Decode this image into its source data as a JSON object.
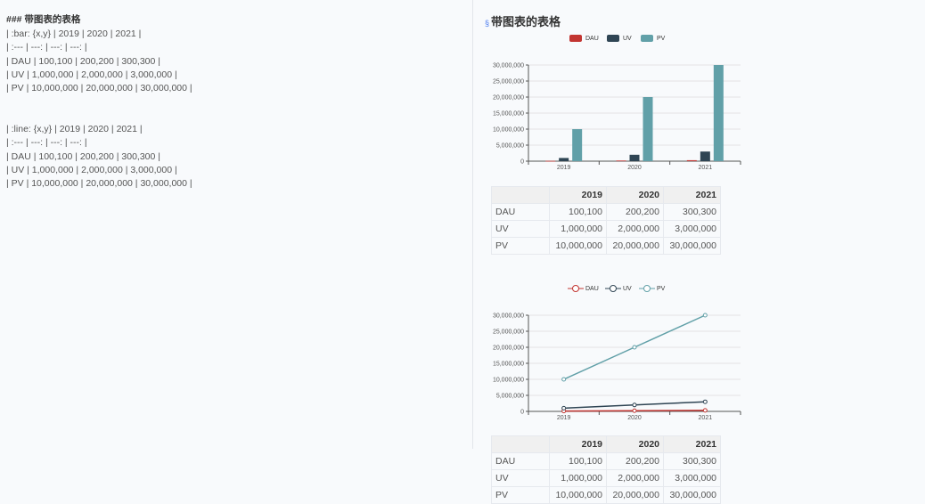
{
  "editor": {
    "heading_line": "### 带图表的表格",
    "bar_block": [
      "| :bar: {x,y} | 2019 | 2020 | 2021 |",
      "| :--- | ---: | ---: | ---: |",
      "| DAU | 100,100 | 200,200 | 300,300 |",
      "| UV | 1,000,000 | 2,000,000 | 3,000,000 |",
      "| PV | 10,000,000 | 20,000,000 | 30,000,000 |"
    ],
    "line_block": [
      "| :line: {x,y} | 2019 | 2020 | 2021 |",
      "| :--- | ---: | ---: | ---: |",
      "| DAU | 100,100 | 200,200 | 300,300 |",
      "| UV | 1,000,000 | 2,000,000 | 3,000,000 |",
      "| PV | 10,000,000 | 20,000,000 | 30,000,000 |"
    ]
  },
  "preview": {
    "anchor_icon": "§",
    "title": "带图表的表格",
    "table": {
      "headers": [
        "",
        "2019",
        "2020",
        "2021"
      ],
      "rows": [
        [
          "DAU",
          "100,100",
          "200,200",
          "300,300"
        ],
        [
          "UV",
          "1,000,000",
          "2,000,000",
          "3,000,000"
        ],
        [
          "PV",
          "10,000,000",
          "20,000,000",
          "30,000,000"
        ]
      ]
    }
  },
  "chart_data": [
    {
      "type": "bar",
      "categories": [
        "2019",
        "2020",
        "2021"
      ],
      "series": [
        {
          "name": "DAU",
          "values": [
            100100,
            200200,
            300300
          ],
          "color": "#c23531"
        },
        {
          "name": "UV",
          "values": [
            1000000,
            2000000,
            3000000
          ],
          "color": "#2f4554"
        },
        {
          "name": "PV",
          "values": [
            10000000,
            20000000,
            30000000
          ],
          "color": "#61a0a8"
        }
      ],
      "ylim": [
        0,
        30000000
      ],
      "yticks": [
        "0",
        "5,000,000",
        "10,000,000",
        "15,000,000",
        "20,000,000",
        "25,000,000",
        "30,000,000"
      ],
      "grid": true,
      "legend": "top-center"
    },
    {
      "type": "line",
      "categories": [
        "2019",
        "2020",
        "2021"
      ],
      "series": [
        {
          "name": "DAU",
          "values": [
            100100,
            200200,
            300300
          ],
          "color": "#c23531"
        },
        {
          "name": "UV",
          "values": [
            1000000,
            2000000,
            3000000
          ],
          "color": "#2f4554"
        },
        {
          "name": "PV",
          "values": [
            10000000,
            20000000,
            30000000
          ],
          "color": "#61a0a8"
        }
      ],
      "ylim": [
        0,
        30000000
      ],
      "yticks": [
        "0",
        "5,000,000",
        "10,000,000",
        "15,000,000",
        "20,000,000",
        "25,000,000",
        "30,000,000"
      ],
      "grid": true,
      "legend": "top-center"
    }
  ]
}
